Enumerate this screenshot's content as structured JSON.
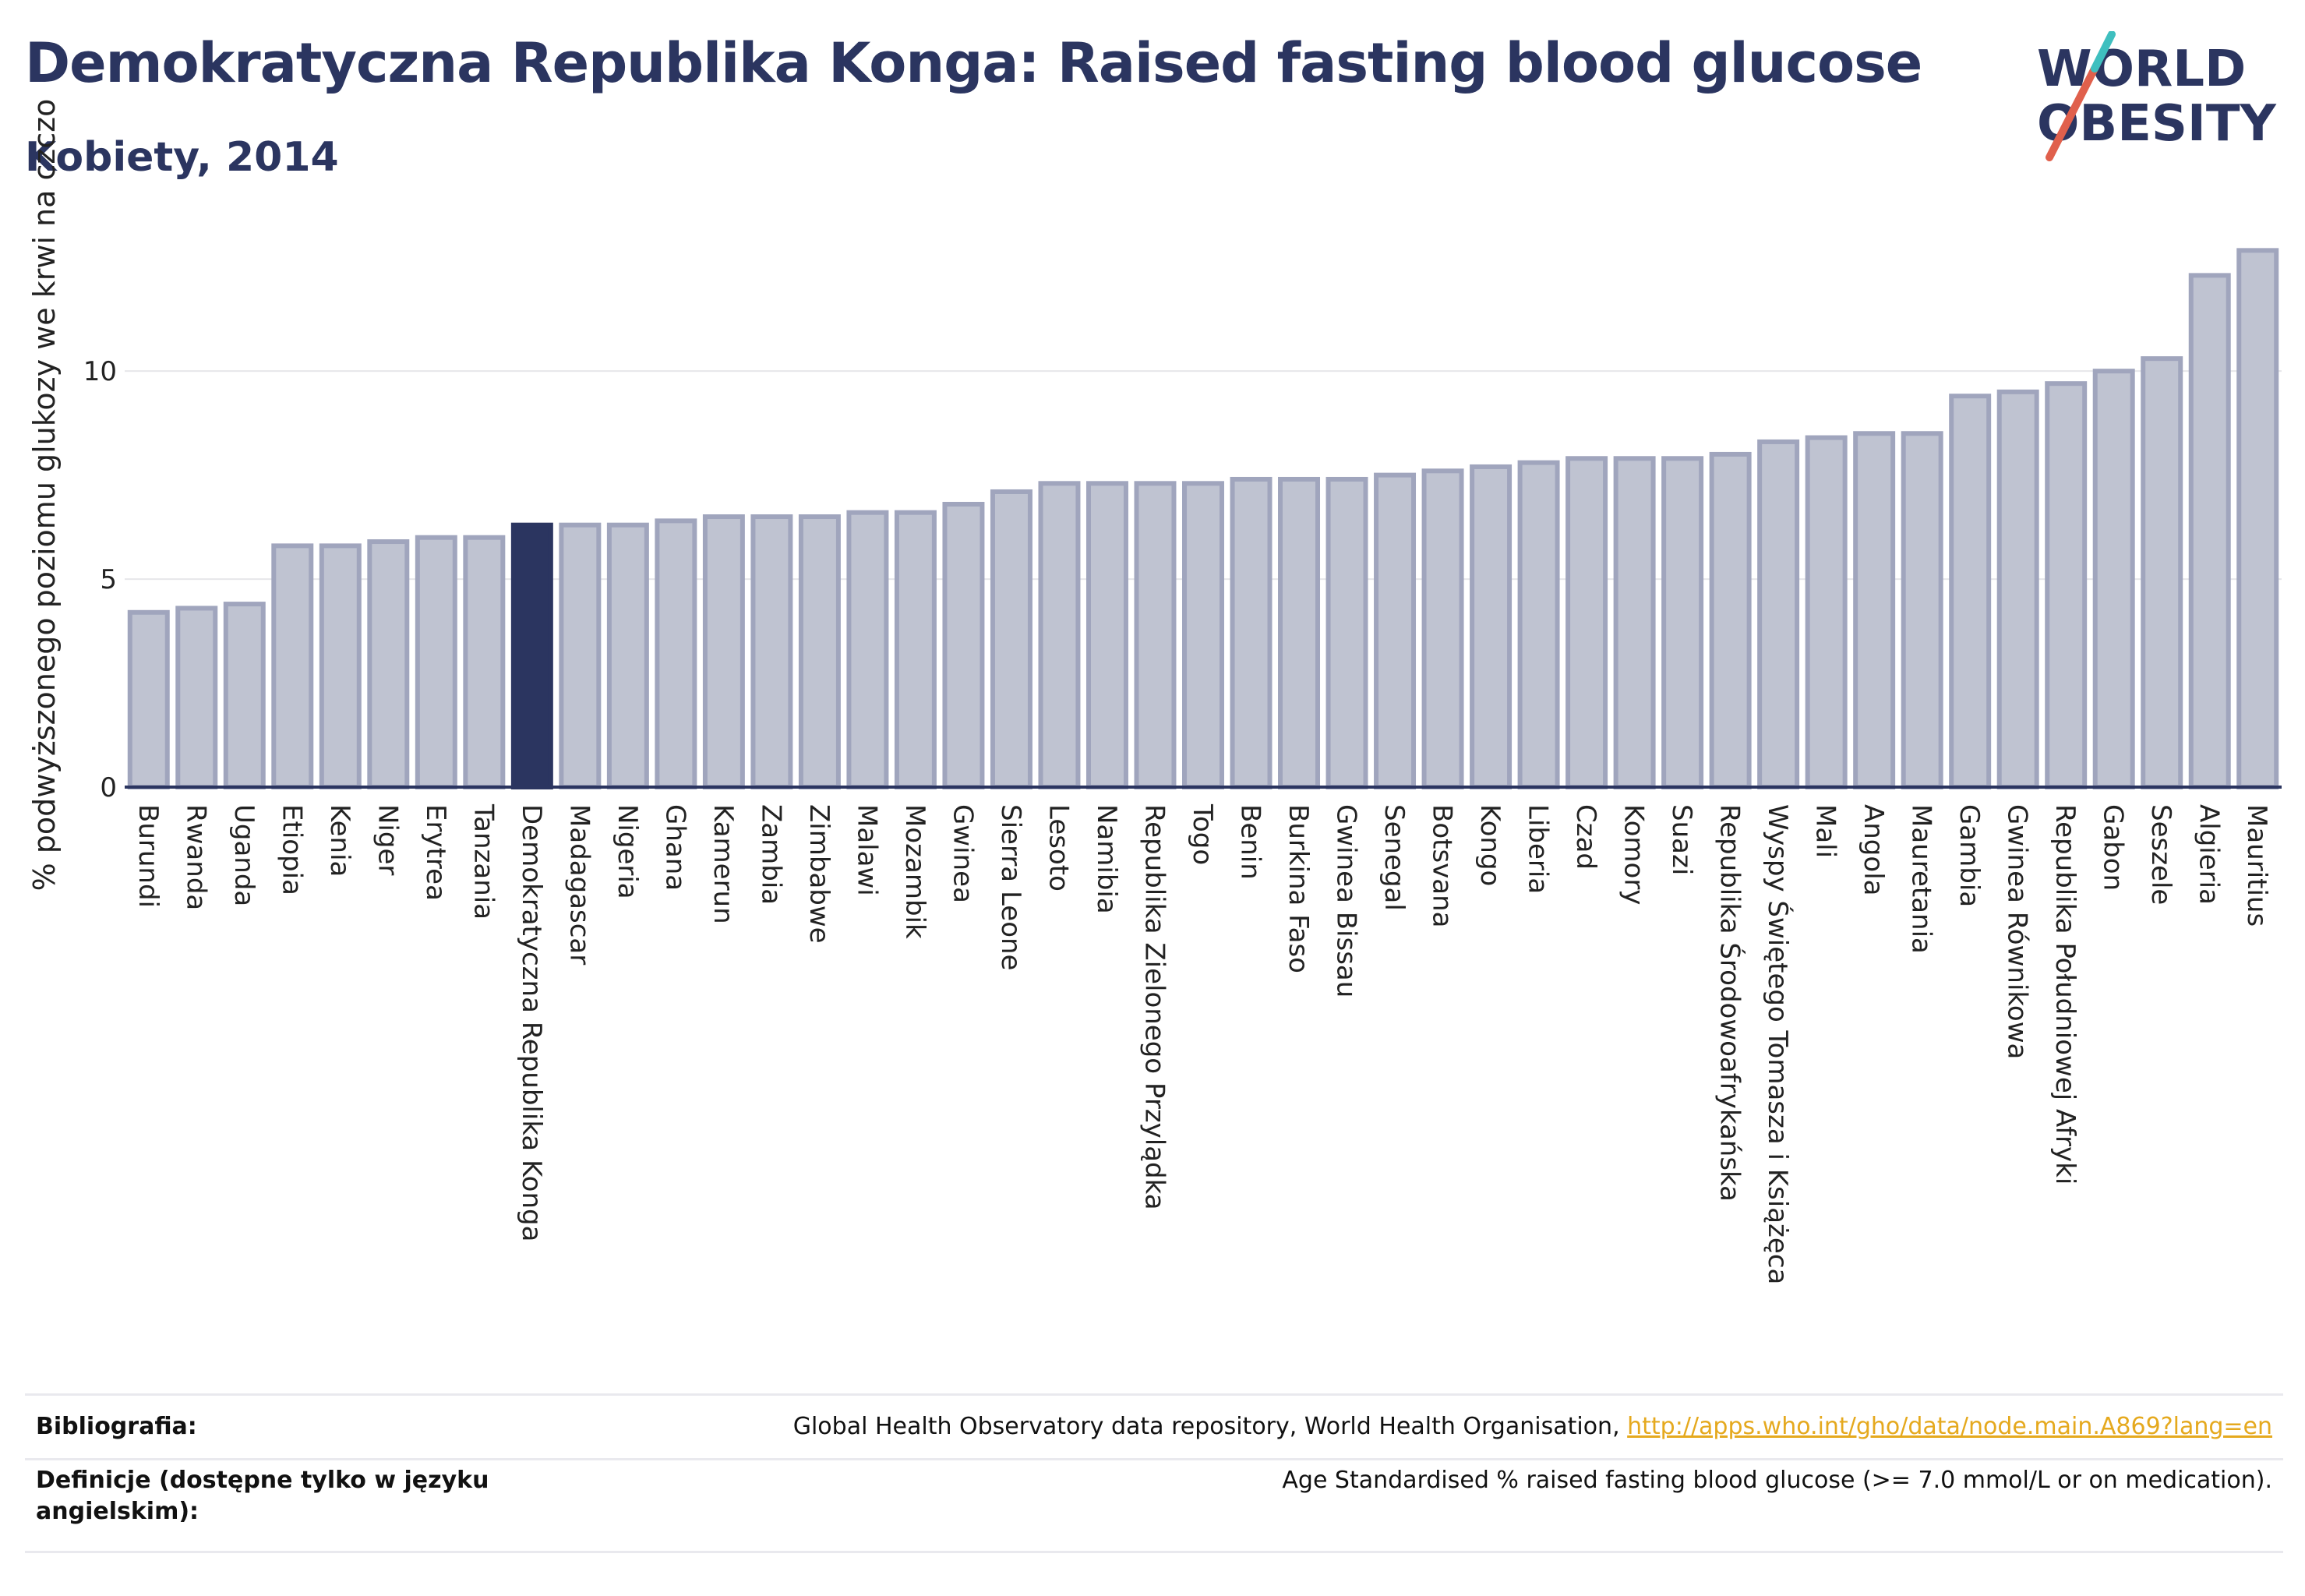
{
  "header": {
    "title": "Demokratyczna Republika Konga: Raised fasting blood glucose",
    "subtitle": "Kobiety, 2014"
  },
  "logo": {
    "line1": "WORLD",
    "line2": "OBESITY",
    "colors": {
      "text": "#2b3560",
      "slash_red": "#e0604c",
      "slash_teal": "#3fbfbf"
    }
  },
  "colors": {
    "bar_default_fill": "#bfc3d1",
    "bar_default_stroke": "#a0a5bd",
    "bar_highlight": "#2b3560",
    "axis": "#2b3560",
    "grid": "#e6e6ea"
  },
  "chart_data": {
    "type": "bar",
    "title": "Demokratyczna Republika Konga: Raised fasting blood glucose",
    "subtitle": "Kobiety, 2014",
    "xlabel": "",
    "ylabel": "% podwyższonego poziomu glukozy we krwi na czczo",
    "ylim": [
      0,
      13.3
    ],
    "yticks": [
      0,
      5,
      10
    ],
    "grid": true,
    "highlight": "Demokratyczna Republika Konga",
    "categories": [
      "Burundi",
      "Rwanda",
      "Uganda",
      "Etiopia",
      "Kenia",
      "Niger",
      "Erytrea",
      "Tanzania",
      "Demokratyczna Republika Konga",
      "Madagascar",
      "Nigeria",
      "Ghana",
      "Kamerun",
      "Zambia",
      "Zimbabwe",
      "Malawi",
      "Mozambik",
      "Gwinea",
      "Sierra Leone",
      "Lesoto",
      "Namibia",
      "Republika Zielonego Przylądka",
      "Togo",
      "Benin",
      "Burkina Faso",
      "Gwinea Bissau",
      "Senegal",
      "Botsvana",
      "Kongo",
      "Liberia",
      "Czad",
      "Komory",
      "Suazi",
      "Republika Środowoafrykańska",
      "Wyspy Świętego Tomasza i Książęca",
      "Mali",
      "Angola",
      "Mauretania",
      "Gambia",
      "Gwinea Równikowa",
      "Republika Południowej Afryki",
      "Gabon",
      "Seszele",
      "Algieria",
      "Mauritius"
    ],
    "values": [
      4.2,
      4.3,
      4.4,
      5.8,
      5.8,
      5.9,
      6.0,
      6.0,
      6.3,
      6.3,
      6.3,
      6.4,
      6.5,
      6.5,
      6.5,
      6.6,
      6.6,
      6.8,
      7.1,
      7.3,
      7.3,
      7.3,
      7.3,
      7.4,
      7.4,
      7.4,
      7.5,
      7.6,
      7.7,
      7.8,
      7.9,
      7.9,
      7.9,
      8.0,
      8.3,
      8.4,
      8.5,
      8.5,
      9.4,
      9.5,
      9.7,
      10.0,
      10.3,
      12.3,
      12.9
    ]
  },
  "footer": {
    "bibliography_label": "Bibliografia:",
    "bibliography_text": "Global Health Observatory data repository, World Health Organisation, ",
    "bibliography_link": "http://apps.who.int/gho/data/node.main.A869?lang=en",
    "definitions_label": "Definicje (dostępne tylko w języku angielskim):",
    "definitions_text": "Age Standardised % raised fasting blood glucose (>= 7.0 mmol/L or on medication)."
  }
}
